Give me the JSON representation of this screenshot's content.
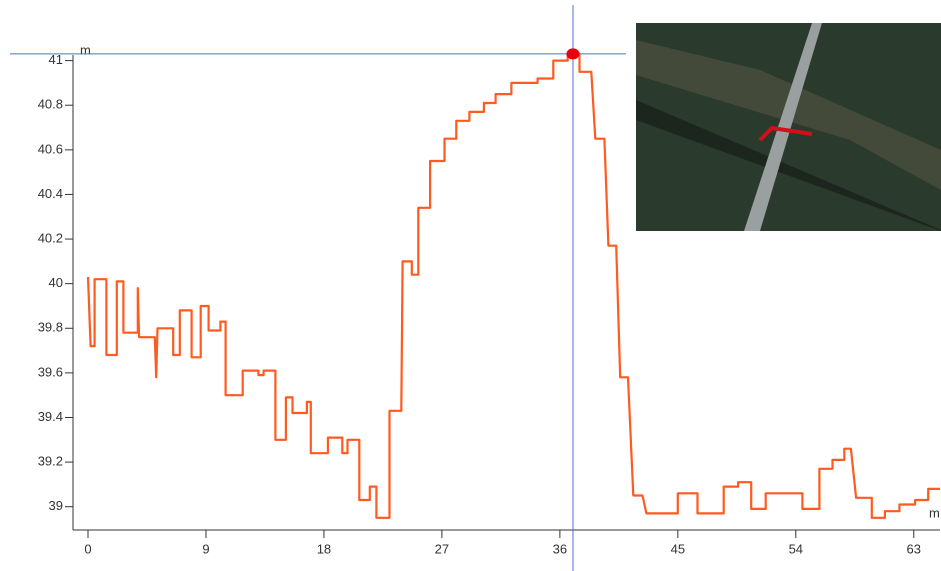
{
  "chart_data": {
    "type": "line",
    "x_label": "m",
    "y_label": "m",
    "xlim": [
      0,
      65
    ],
    "ylim": [
      38.9,
      41.07
    ],
    "xticks": [
      0,
      9,
      18,
      27,
      36,
      45,
      54,
      63
    ],
    "yticks": [
      39,
      39.2,
      39.4,
      39.6,
      39.8,
      40,
      40.2,
      40.4,
      40.6,
      40.8,
      41
    ],
    "crosshair": {
      "x": 37,
      "y": 41.03,
      "color": "#4a74c9",
      "marker_color": "#e8000b"
    },
    "series": [
      {
        "color": "#ff5a1f",
        "x": [
          0,
          0.2,
          0.5,
          0.5,
          1.4,
          1.4,
          2.2,
          2.2,
          2.7,
          2.7,
          3.8,
          3.8,
          3.9,
          5.1,
          5.2,
          5.3,
          6.5,
          6.5,
          7.0,
          7.0,
          7.9,
          7.9,
          8.6,
          8.6,
          9.2,
          9.2,
          10.1,
          10.1,
          10.5,
          10.5,
          11.8,
          11.8,
          13,
          13,
          13.4,
          13.4,
          14.3,
          14.3,
          15.1,
          15.1,
          15.6,
          15.6,
          16.7,
          16.7,
          17,
          17,
          18.3,
          18.3,
          19.4,
          19.4,
          19.8,
          19.8,
          20.7,
          20.7,
          21.5,
          21.5,
          22,
          22,
          23,
          23,
          23.9,
          24,
          24.7,
          24.7,
          25.2,
          25.2,
          26.1,
          26.1,
          27.2,
          27.2,
          28.1,
          28.1,
          29.1,
          29.1,
          30.2,
          30.2,
          31.1,
          31.1,
          32.3,
          32.3,
          34.3,
          34.3,
          35.5,
          35.5,
          36.6,
          36.6,
          37.5,
          37.5,
          38.4,
          38.7,
          39.4,
          39.7,
          40.3,
          40.6,
          41.2,
          41.6,
          42.3,
          42.6,
          45,
          45,
          46.5,
          46.5,
          48.5,
          48.5,
          49.6,
          49.6,
          50.6,
          50.6,
          51.7,
          51.7,
          54.5,
          54.5,
          55.8,
          55.8,
          56.8,
          56.8,
          57.7,
          57.7,
          58.2,
          58.6,
          59.8,
          59.8,
          60.8,
          60.8,
          61.9,
          61.9,
          63.1,
          63.1,
          64.1,
          64.1,
          65
        ],
        "values": [
          40.03,
          39.72,
          39.72,
          40.02,
          40.02,
          39.68,
          39.68,
          40.01,
          40.01,
          39.78,
          39.78,
          39.98,
          39.76,
          39.76,
          39.58,
          39.8,
          39.8,
          39.68,
          39.68,
          39.88,
          39.88,
          39.67,
          39.67,
          39.9,
          39.9,
          39.79,
          39.79,
          39.83,
          39.83,
          39.5,
          39.5,
          39.61,
          39.61,
          39.59,
          39.59,
          39.61,
          39.61,
          39.3,
          39.3,
          39.49,
          39.49,
          39.42,
          39.42,
          39.47,
          39.47,
          39.24,
          39.24,
          39.31,
          39.31,
          39.24,
          39.24,
          39.3,
          39.3,
          39.03,
          39.03,
          39.09,
          39.09,
          38.95,
          38.95,
          39.43,
          39.43,
          40.1,
          40.1,
          40.04,
          40.04,
          40.34,
          40.34,
          40.55,
          40.55,
          40.65,
          40.65,
          40.73,
          40.73,
          40.77,
          40.77,
          40.81,
          40.81,
          40.85,
          40.85,
          40.9,
          40.9,
          40.92,
          40.92,
          41.0,
          41.0,
          41.03,
          41.03,
          40.95,
          40.95,
          40.65,
          40.65,
          40.17,
          40.17,
          39.58,
          39.58,
          39.05,
          39.05,
          38.97,
          38.97,
          39.06,
          39.06,
          38.97,
          38.97,
          39.09,
          39.09,
          39.11,
          39.11,
          38.99,
          38.99,
          39.06,
          39.06,
          38.99,
          38.99,
          39.17,
          39.17,
          39.21,
          39.21,
          39.26,
          39.26,
          39.04,
          39.04,
          38.95,
          38.95,
          38.98,
          38.98,
          39.01,
          39.01,
          39.03,
          39.03,
          39.08,
          39.08
        ]
      }
    ]
  }
}
